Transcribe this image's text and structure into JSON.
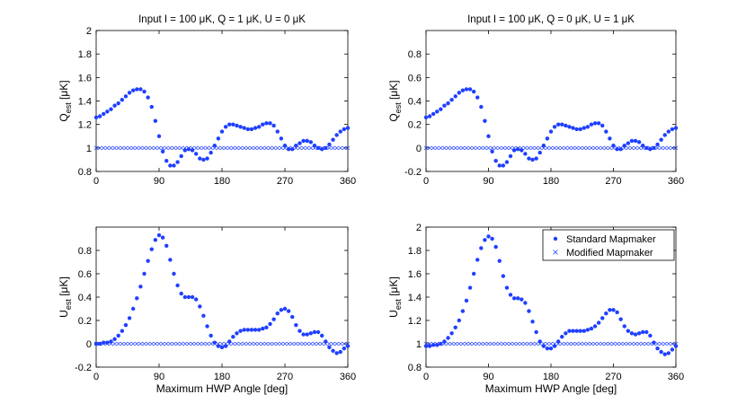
{
  "colors": {
    "series": "#1f3fff",
    "axis": "#000000",
    "background": "#ffffff"
  },
  "chart_data": [
    {
      "type": "scatter",
      "title": "Input I = 100 μK, Q = 1 μK, U = 0 μK",
      "ylabel_main": "Q",
      "ylabel_sub": "est",
      "ylabel_unit": " [μK]",
      "xlabel": "",
      "xlim": [
        0,
        360
      ],
      "ylim": [
        0.8,
        2.0
      ],
      "xticks": [
        0,
        90,
        180,
        270,
        360
      ],
      "yticks": [
        0.8,
        1.0,
        1.2,
        1.4,
        1.6,
        1.8,
        2.0
      ],
      "ytick_labels": [
        "0.8",
        "1",
        "1.2",
        "1.4",
        "1.6",
        "1.8",
        "2"
      ],
      "legend": [],
      "series": [
        {
          "name": "Standard Mapmaker",
          "marker": "dot",
          "values": [
            1.26,
            1.27,
            1.29,
            1.31,
            1.33,
            1.36,
            1.38,
            1.41,
            1.44,
            1.47,
            1.49,
            1.5,
            1.5,
            1.48,
            1.43,
            1.35,
            1.23,
            1.1,
            0.97,
            0.89,
            0.85,
            0.85,
            0.88,
            0.93,
            0.98,
            0.99,
            0.98,
            0.95,
            0.91,
            0.9,
            0.91,
            0.96,
            1.02,
            1.08,
            1.14,
            1.18,
            1.2,
            1.2,
            1.19,
            1.18,
            1.17,
            1.16,
            1.16,
            1.17,
            1.18,
            1.2,
            1.21,
            1.21,
            1.19,
            1.14,
            1.08,
            1.02,
            0.99,
            0.99,
            1.02,
            1.04,
            1.06,
            1.06,
            1.05,
            1.02,
            1.0,
            0.99,
            1.0,
            1.03,
            1.07,
            1.11,
            1.14,
            1.16,
            1.17
          ]
        },
        {
          "name": "Modified Mapmaker",
          "marker": "x",
          "constant": 1.0
        }
      ]
    },
    {
      "type": "scatter",
      "title": "Input I = 100 μK, Q = 0 μK, U = 1 μK",
      "ylabel_main": "Q",
      "ylabel_sub": "est",
      "ylabel_unit": " [μK]",
      "xlabel": "",
      "xlim": [
        0,
        360
      ],
      "ylim": [
        -0.2,
        1.0
      ],
      "xticks": [
        0,
        90,
        180,
        270,
        360
      ],
      "yticks": [
        -0.2,
        0.0,
        0.2,
        0.4,
        0.6,
        0.8
      ],
      "ytick_labels": [
        "-0.2",
        "0",
        "0.2",
        "0.4",
        "0.6",
        "0.8"
      ],
      "legend": [],
      "series": [
        {
          "name": "Standard Mapmaker",
          "marker": "dot",
          "values": [
            0.26,
            0.27,
            0.29,
            0.31,
            0.33,
            0.36,
            0.38,
            0.41,
            0.44,
            0.47,
            0.49,
            0.5,
            0.5,
            0.48,
            0.43,
            0.35,
            0.23,
            0.1,
            -0.03,
            -0.11,
            -0.15,
            -0.15,
            -0.12,
            -0.07,
            -0.02,
            -0.01,
            -0.02,
            -0.05,
            -0.09,
            -0.1,
            -0.09,
            -0.04,
            0.02,
            0.08,
            0.14,
            0.18,
            0.2,
            0.2,
            0.19,
            0.18,
            0.17,
            0.16,
            0.16,
            0.17,
            0.18,
            0.2,
            0.21,
            0.21,
            0.19,
            0.14,
            0.08,
            0.02,
            -0.01,
            -0.01,
            0.02,
            0.04,
            0.06,
            0.06,
            0.05,
            0.02,
            0.0,
            -0.01,
            0.0,
            0.03,
            0.07,
            0.11,
            0.14,
            0.16,
            0.17
          ]
        },
        {
          "name": "Modified Mapmaker",
          "marker": "x",
          "constant": 0.0
        }
      ]
    },
    {
      "type": "scatter",
      "title": "",
      "ylabel_main": "U",
      "ylabel_sub": "est",
      "ylabel_unit": " [μK]",
      "xlabel": "Maximum HWP Angle [deg]",
      "xlim": [
        0,
        360
      ],
      "ylim": [
        -0.2,
        1.0
      ],
      "xticks": [
        0,
        90,
        180,
        270,
        360
      ],
      "yticks": [
        -0.2,
        0.0,
        0.2,
        0.4,
        0.6,
        0.8
      ],
      "ytick_labels": [
        "-0.2",
        "0",
        "0.2",
        "0.4",
        "0.6",
        "0.8"
      ],
      "legend": [],
      "series": [
        {
          "name": "Standard Mapmaker",
          "marker": "dot",
          "values": [
            0.0,
            0.0,
            0.01,
            0.01,
            0.02,
            0.04,
            0.07,
            0.11,
            0.16,
            0.22,
            0.3,
            0.39,
            0.49,
            0.6,
            0.71,
            0.81,
            0.89,
            0.93,
            0.91,
            0.84,
            0.72,
            0.6,
            0.5,
            0.43,
            0.4,
            0.4,
            0.4,
            0.38,
            0.32,
            0.24,
            0.15,
            0.07,
            0.01,
            -0.02,
            -0.03,
            -0.02,
            0.02,
            0.06,
            0.09,
            0.11,
            0.12,
            0.12,
            0.12,
            0.12,
            0.12,
            0.13,
            0.14,
            0.17,
            0.21,
            0.26,
            0.29,
            0.3,
            0.28,
            0.23,
            0.16,
            0.11,
            0.08,
            0.08,
            0.09,
            0.1,
            0.1,
            0.07,
            0.02,
            -0.03,
            -0.06,
            -0.08,
            -0.07,
            -0.04,
            -0.02
          ]
        },
        {
          "name": "Modified Mapmaker",
          "marker": "x",
          "constant": 0.0
        }
      ]
    },
    {
      "type": "scatter",
      "title": "",
      "ylabel_main": "U",
      "ylabel_sub": "est",
      "ylabel_unit": " [μK]",
      "xlabel": "Maximum HWP Angle [deg]",
      "xlim": [
        0,
        360
      ],
      "ylim": [
        0.8,
        2.0
      ],
      "xticks": [
        0,
        90,
        180,
        270,
        360
      ],
      "yticks": [
        0.8,
        1.0,
        1.2,
        1.4,
        1.6,
        1.8,
        2.0
      ],
      "ytick_labels": [
        "0.8",
        "1",
        "1.2",
        "1.4",
        "1.6",
        "1.8",
        "2"
      ],
      "legend": [
        "Standard Mapmaker",
        "Modified Mapmaker"
      ],
      "legend_position": "top-right",
      "series": [
        {
          "name": "Standard Mapmaker",
          "marker": "dot",
          "values": [
            0.98,
            0.98,
            0.99,
            0.99,
            1.0,
            1.02,
            1.05,
            1.09,
            1.14,
            1.2,
            1.28,
            1.37,
            1.48,
            1.6,
            1.72,
            1.82,
            1.89,
            1.92,
            1.9,
            1.83,
            1.71,
            1.58,
            1.48,
            1.42,
            1.39,
            1.39,
            1.38,
            1.35,
            1.28,
            1.19,
            1.1,
            1.02,
            0.98,
            0.96,
            0.96,
            0.98,
            1.02,
            1.06,
            1.09,
            1.11,
            1.11,
            1.11,
            1.11,
            1.11,
            1.12,
            1.13,
            1.15,
            1.18,
            1.22,
            1.26,
            1.29,
            1.29,
            1.27,
            1.21,
            1.15,
            1.11,
            1.09,
            1.08,
            1.09,
            1.1,
            1.1,
            1.07,
            1.01,
            0.96,
            0.93,
            0.91,
            0.92,
            0.95,
            0.98
          ]
        },
        {
          "name": "Modified Mapmaker",
          "marker": "x",
          "constant": 1.0
        }
      ]
    }
  ]
}
